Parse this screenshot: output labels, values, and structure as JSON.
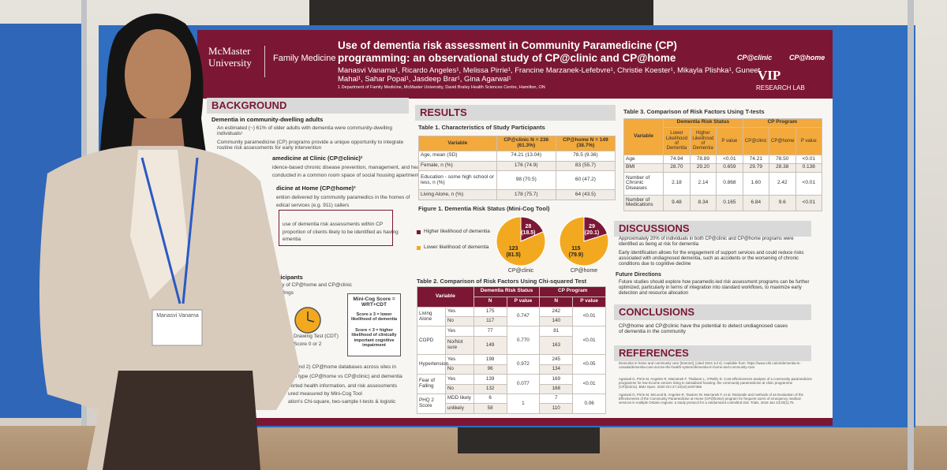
{
  "header": {
    "logo": "McMaster University",
    "department": "Family Medicine",
    "title": "Use of dementia risk assessment in Community Paramedicine (CP) programming: an observational study of CP@clinic and CP@home",
    "authors": "Manasvi Vanama¹, Ricardo Angeles¹, Melissa Pirrie¹, Francine Marzanek-Lefebvre¹, Christie Koester¹, Mikayla Plishka¹, Guneet Mahal¹, Sahar Popal¹, Jasdeep Brar¹, Gina Agarwal¹",
    "affiliation": "1 Department of Family Medicine, McMaster University, David Braley Health Sciences Centre, Hamilton, ON",
    "program_logos": [
      "CP@clinic",
      "CP@home"
    ],
    "lab_logo": "VIP",
    "lab_name": "RESEARCH LAB"
  },
  "background": {
    "heading": "BACKGROUND",
    "lines": [
      "Dementia in community-dwelling adults",
      "An estimated (~) 61% of older adults with dementia were community-dwelling individuals¹",
      "Community paramedicine (CP) programs provide a unique opportunity to integrate routine risk assessments for early intervention",
      "amedicine at Clinic (CP@clinic)²",
      "idence-based chronic disease prevention, management, and health",
      "conducted in a common room space of social housing apartment",
      "dicine at Home (CP@home)³",
      "ention delivered by community paramedics in the homes of",
      "edical services (e.g. 911) callers",
      "use of dementia risk assessments within CP",
      "proportion of clients likely to be identified as having",
      "ementia",
      "rticipants",
      "udy of CP@home and CP@clinic",
      "uildings",
      "Drawing Test (CDT)",
      "Score 0 or 2",
      "nic and 2) CP@home databases across sites in",
      "ram type (CP@home vs CP@clinic) and dementia",
      "ported health information, and risk assessments",
      "ured measured by Mini-Cog Tool",
      "ation's Chi-square, two-sample t-tests & logistic"
    ],
    "minicog": [
      "Mini-Cog Score = WRT+CDT",
      "Score ≥ 3 = lower likelihood of dementia",
      "Score < 3 = higher likelihood of clinically important cognitive impairment"
    ]
  },
  "results": {
    "heading": "RESULTS",
    "table1": {
      "title": "Table 1. Characteristics of Study Participants",
      "headers": [
        "Variable",
        "CP@clinic N = 236 (61.3%)",
        "CP@home N = 149 (38.7%)"
      ],
      "rows": [
        [
          "Age, mean (SD)",
          "74.21 (13.04)",
          "78.5 (9.36)"
        ],
        [
          "Female, n (%)",
          "176 (74.9)",
          "83 (55.7)"
        ],
        [
          "Education - some high school or less, n (%)",
          "98 (70.5)",
          "60 (47.2)"
        ],
        [
          "Living Alone, n (%)",
          "178 (75.7)",
          "64 (43.5)"
        ]
      ]
    },
    "figure1": {
      "title": "Figure 1. Dementia Risk Status (Mini-Cog Tool)",
      "series": [
        {
          "name": "Higher likelihood of dementia",
          "color": "#7b1734"
        },
        {
          "name": "Lower likelihood of dementia",
          "color": "#f2a91f"
        }
      ],
      "pies": [
        {
          "name": "CP@clinic",
          "values": [
            28,
            123
          ],
          "value_labels": [
            "28 (18.5)",
            "123 (81.5)"
          ]
        },
        {
          "name": "CP@home",
          "values": [
            29,
            115
          ],
          "value_labels": [
            "29 (20.1)",
            "115 (79.9)"
          ]
        }
      ]
    },
    "table2": {
      "title": "Table 2. Comparison of Risk Factors Using Chi-squared Test",
      "headers": [
        "Variable",
        "Dementia Risk Status",
        "CP Program"
      ],
      "subheaders": [
        "N",
        "P value",
        "N",
        "P value"
      ],
      "groups": [
        {
          "variable": "Living Alone",
          "rows": [
            [
              "Yes",
              "175",
              "242"
            ],
            [
              "No",
              "117",
              "140"
            ]
          ],
          "p": [
            "0.747",
            "<0.01"
          ]
        },
        {
          "variable": "COPD",
          "rows": [
            [
              "Yes",
              "77",
              "81"
            ],
            [
              "No/Not sure",
              "149",
              "163"
            ]
          ],
          "p": [
            "0.770",
            "<0.01"
          ]
        },
        {
          "variable": "Hypertension",
          "rows": [
            [
              "Yes",
              "198",
              "245"
            ],
            [
              "No",
              "96",
              "134"
            ]
          ],
          "p": [
            "0.972",
            "<0.05"
          ]
        },
        {
          "variable": "Fear of Falling",
          "rows": [
            [
              "Yes",
              "139",
              "169"
            ],
            [
              "No",
              "132",
              "168"
            ]
          ],
          "p": [
            "0.077",
            "<0.01"
          ]
        },
        {
          "variable": "PHQ 2 Score",
          "rows": [
            [
              "MDD likely",
              "6",
              "7"
            ],
            [
              "unlikely",
              "58",
              "110"
            ]
          ],
          "p": [
            "1",
            "0.06"
          ]
        }
      ]
    }
  },
  "table3": {
    "title": "Table 3. Comparison of Risk Factors Using T-tests",
    "headers": [
      "Variable",
      "Dementia Risk Status",
      "CP Program"
    ],
    "subheaders": [
      "Lower Likelihood of Dementia",
      "Higher Likelihood of Dementia",
      "P value",
      "CP@clinic",
      "CP@home",
      "P value"
    ],
    "rows": [
      [
        "Age",
        "74.94",
        "78.89",
        "<0.01",
        "74.21",
        "78.50",
        "<0.01"
      ],
      [
        "BMI",
        "28.70",
        "29.20",
        "0.659",
        "29.79",
        "28.38",
        "0.138"
      ],
      [
        "Number of Chronic Diseases",
        "2.18",
        "2.14",
        "0.868",
        "1.60",
        "2.42",
        "<0.01"
      ],
      [
        "Number of Medications",
        "9.48",
        "8.34",
        "0.165",
        "6.84",
        "9.6",
        "<0.01"
      ]
    ]
  },
  "discussions": {
    "heading": "DISCUSSIONS",
    "bullets": [
      "Approximately 20% of individuals in both CP@clinic and CP@home programs were identified as being at risk for dementia",
      "Early identification allows for the engagement of support services and could reduce risks associated with undiagnosed dementia, such as accidents or the worsening of chronic conditions due to cognitive decline"
    ],
    "subheading": "Future Directions",
    "future": "Future studies should explore how paramedic-led risk assessment programs can be further optimized, particularly in terms of integration into standard workflows, to maximize early detection and resource allocation"
  },
  "conclusions": {
    "heading": "CONCLUSIONS",
    "bullets": [
      "CP@home and CP@clinic have the potential to detect undiagnosed cases of dementia in the community"
    ]
  },
  "references": {
    "heading": "REFERENCES",
    "items": [
      "Dementia in home and community care [Internet]. [cited 2024 Jul 4]. Available from: https://www.cihi.ca/en/dementia-in-canada/dementia-care-across-the-health-system/dementia-in-home-and-community-care",
      "Agarwal G, Pirrie M, Angeles R, Marzanek F, Thabane L, O'Reilly D. Cost-effectiveness analysis of a community paramedicine programme for low-income seniors living in subsidised housing: the community paramedicine at clinic programme (CP@clinic). BMJ Open. 2020 Oct 27;10(10):e037386",
      "Agarwal G, Pirrie M, McLeod B, Angeles R, Tavares W, Marzanek F, et al. Rationale and methods of an Evaluation of the Effectiveness of the Community Paramedicine at Home (CP@home) program for frequent users of emergency medical services in multiple Ontario regions: a study protocol for a randomized controlled trial. Trials. 2019 Jan 23;20(1):75"
    ]
  },
  "badge": {
    "name": "Manasvi Vanama"
  }
}
